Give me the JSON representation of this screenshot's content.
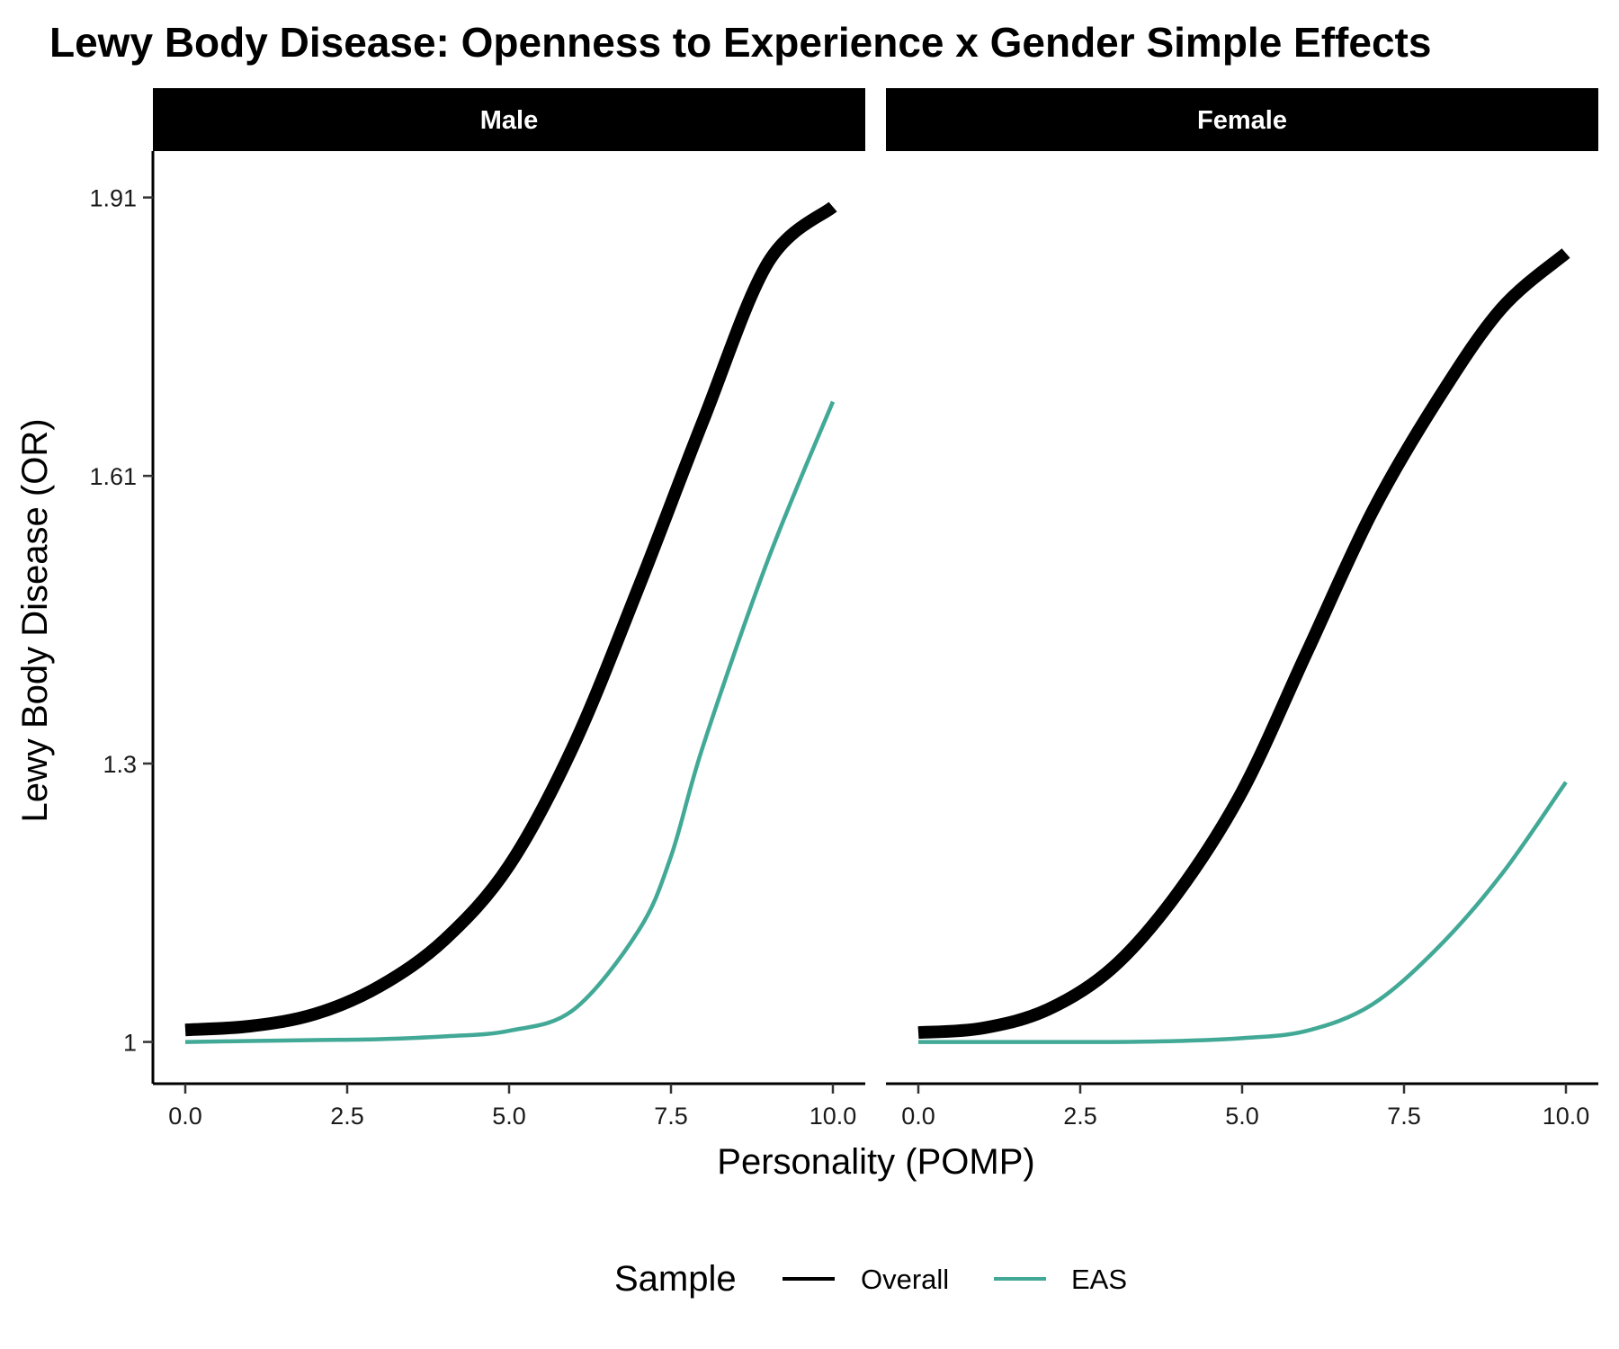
{
  "chart_data": {
    "type": "line",
    "title": "Lewy Body Disease: Openness to Experience x Gender Simple Effects",
    "xlabel": "Personality (POMP)",
    "ylabel": "Lewy Body Disease (OR)",
    "xlim": [
      -0.5,
      10.5
    ],
    "ylim": [
      0.955,
      1.96
    ],
    "x_ticks": [
      0,
      2.5,
      5,
      7.5,
      10
    ],
    "x_tick_labels": [
      "0.0",
      "2.5",
      "5.0",
      "7.5",
      "10.0"
    ],
    "y_ticks": [
      1,
      1.3,
      1.61,
      1.91
    ],
    "y_tick_labels": [
      "1",
      "1.3",
      "1.61",
      "1.91"
    ],
    "grid": false,
    "legend": {
      "title": "Sample",
      "position": "bottom"
    },
    "facets": [
      {
        "label": "Male",
        "series": [
          {
            "name": "Overall",
            "color": "#000000",
            "x": [
              0,
              1,
              2,
              3,
              4,
              5,
              6,
              7,
              8,
              9,
              10
            ],
            "y": [
              1.013,
              1.017,
              1.03,
              1.06,
              1.11,
              1.19,
              1.32,
              1.49,
              1.67,
              1.84,
              1.9
            ]
          },
          {
            "name": "EAS",
            "color": "#42a996",
            "x": [
              0,
              1,
              2,
              3,
              4,
              5,
              6,
              7,
              7.5,
              8,
              9,
              10
            ],
            "y": [
              1.0,
              1.001,
              1.002,
              1.003,
              1.006,
              1.012,
              1.035,
              1.12,
              1.2,
              1.32,
              1.52,
              1.69
            ]
          }
        ]
      },
      {
        "label": "Female",
        "series": [
          {
            "name": "Overall",
            "color": "#000000",
            "x": [
              0,
              1,
              2,
              3,
              4,
              5,
              6,
              7,
              8,
              9,
              10
            ],
            "y": [
              1.01,
              1.015,
              1.035,
              1.08,
              1.16,
              1.27,
              1.42,
              1.57,
              1.69,
              1.79,
              1.85
            ]
          },
          {
            "name": "EAS",
            "color": "#42a996",
            "x": [
              0,
              1,
              2,
              3,
              4,
              5,
              6,
              7,
              8,
              9,
              10
            ],
            "y": [
              1.0,
              1.0,
              1.0,
              1.0,
              1.001,
              1.004,
              1.012,
              1.04,
              1.1,
              1.18,
              1.28
            ]
          }
        ]
      }
    ]
  }
}
